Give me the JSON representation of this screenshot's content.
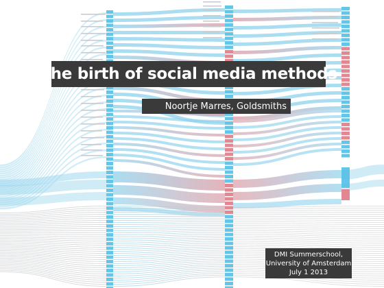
{
  "slide": {
    "title": "The birth of social media methods",
    "author": "Noortje Marres, Goldsmiths",
    "event": {
      "line1": "DMI Summerschool,",
      "line2": "University of Amsterdam",
      "line3": "July 1 2013"
    }
  },
  "colors": {
    "blue": "#7ccbe8",
    "blue_bar": "#52bfe6",
    "red": "#d98a95",
    "red_bar": "#e07a87",
    "grey": "#b9bcc0",
    "dark_box": "#3a3a3a"
  }
}
